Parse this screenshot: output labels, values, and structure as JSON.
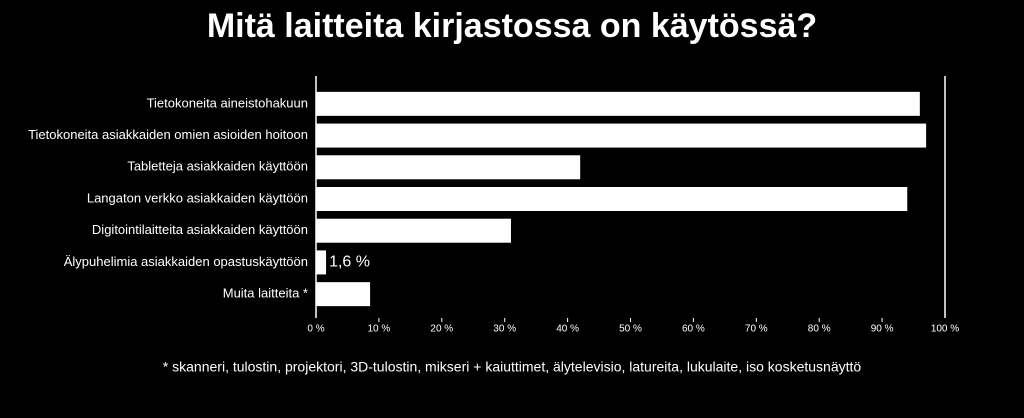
{
  "chart_data": {
    "type": "barh",
    "title": "Mitä laitteita kirjastossa on käytössä?",
    "categories": [
      "Tietokoneita aineistohakuun",
      "Tietokoneita asiakkaiden omien asioiden hoitoon",
      "Tabletteja asiakkaiden käyttöön",
      "Langaton verkko asiakkaiden käyttöön",
      "Digitointilaitteita asiakkaiden käyttöön",
      "Älypuhelimia asiakkaiden opastuskäyttöön",
      "Muita laitteita *"
    ],
    "values": [
      96,
      97,
      42,
      94,
      31,
      1.6,
      8.6
    ],
    "value_labels": [
      null,
      null,
      null,
      null,
      null,
      "1,6 %",
      null
    ],
    "color": "#ffffff",
    "xlim": [
      0,
      100
    ],
    "xticks": [
      {
        "value": 0,
        "label": "0 %"
      },
      {
        "value": 10,
        "label": "10 %"
      },
      {
        "value": 20,
        "label": "20 %"
      },
      {
        "value": 30,
        "label": "30 %"
      },
      {
        "value": 40,
        "label": "40 %"
      },
      {
        "value": 50,
        "label": "50 %"
      },
      {
        "value": 60,
        "label": "60 %"
      },
      {
        "value": 70,
        "label": "70 %"
      },
      {
        "value": 80,
        "label": "80 %"
      },
      {
        "value": 90,
        "label": "90 %"
      },
      {
        "value": 100,
        "label": "100 %"
      }
    ],
    "footnote": "* skanneri, tulostin, projektori, 3D-tulostin, mikseri + kaiuttimet, älytelevisio, latureita, lukulaite, iso kosketusnäyttö"
  }
}
